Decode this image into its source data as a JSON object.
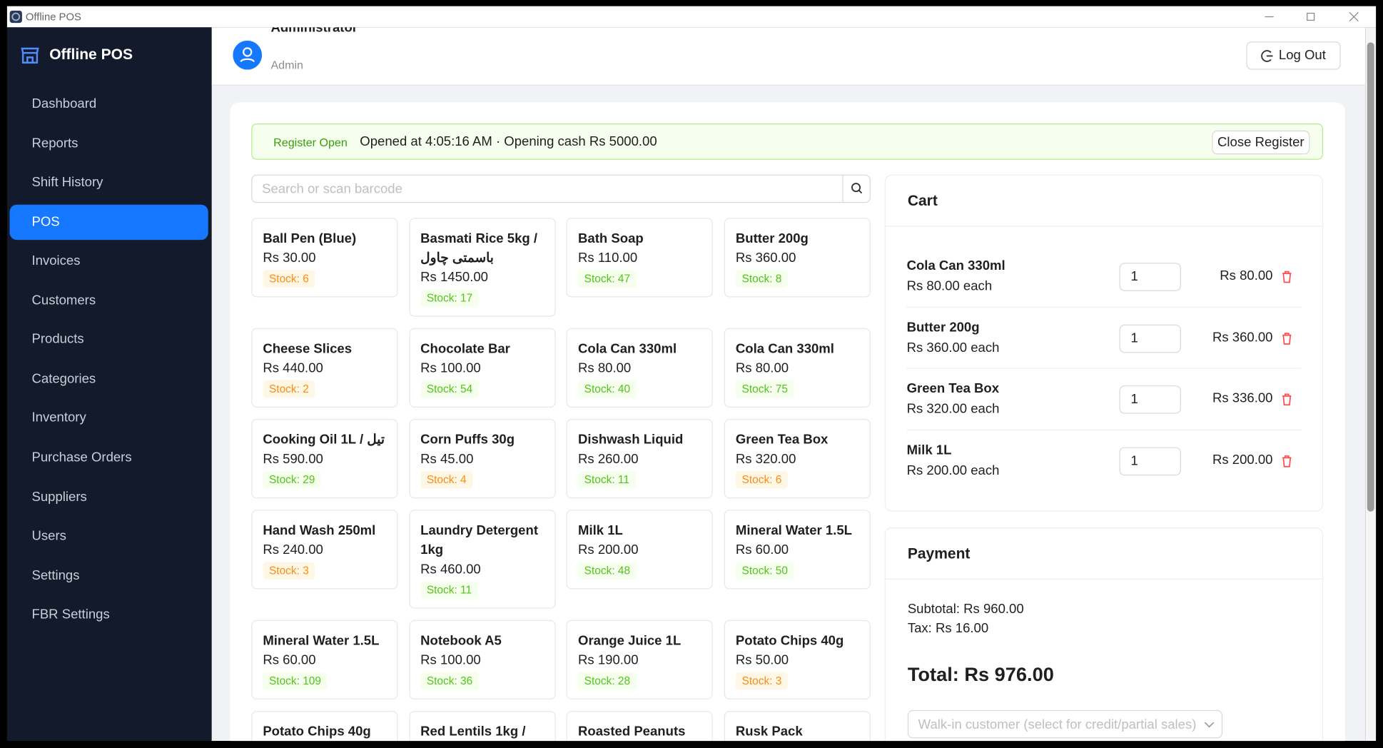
{
  "window": {
    "title": "Offline POS"
  },
  "sidebar": {
    "brand": "Offline POS",
    "nav": [
      {
        "label": "Dashboard"
      },
      {
        "label": "Reports"
      },
      {
        "label": "Shift History"
      },
      {
        "label": "POS",
        "active": true
      },
      {
        "label": "Invoices"
      },
      {
        "label": "Customers"
      },
      {
        "label": "Products"
      },
      {
        "label": "Categories"
      },
      {
        "label": "Inventory"
      },
      {
        "label": "Purchase Orders"
      },
      {
        "label": "Suppliers"
      },
      {
        "label": "Users"
      },
      {
        "label": "Settings"
      },
      {
        "label": "FBR Settings"
      }
    ]
  },
  "header": {
    "user_name": "Administrator",
    "user_role": "Admin",
    "logout": "Log Out"
  },
  "register": {
    "status": "Register Open",
    "info": "Opened at 4:05:16 AM · Opening cash Rs 5000.00",
    "close_button": "Close Register"
  },
  "search": {
    "placeholder": "Search or scan barcode"
  },
  "products": [
    {
      "name": "Ball Pen (Blue)",
      "price": "Rs 30.00",
      "stock": "Stock: 6"
    },
    {
      "name": "Basmati Rice 5kg / باسمتی چاول",
      "price": "Rs 1450.00",
      "stock": "Stock: 17"
    },
    {
      "name": "Bath Soap",
      "price": "Rs 110.00",
      "stock": "Stock: 47"
    },
    {
      "name": "Butter 200g",
      "price": "Rs 360.00",
      "stock": "Stock: 8"
    },
    {
      "name": "Cheese Slices",
      "price": "Rs 440.00",
      "stock": "Stock: 2"
    },
    {
      "name": "Chocolate Bar",
      "price": "Rs 100.00",
      "stock": "Stock: 54"
    },
    {
      "name": "Cola Can 330ml",
      "price": "Rs 80.00",
      "stock": "Stock: 40"
    },
    {
      "name": "Cola Can 330ml",
      "price": "Rs 80.00",
      "stock": "Stock: 75"
    },
    {
      "name": "Cooking Oil 1L / تیل",
      "price": "Rs 590.00",
      "stock": "Stock: 29"
    },
    {
      "name": "Corn Puffs 30g",
      "price": "Rs 45.00",
      "stock": "Stock: 4"
    },
    {
      "name": "Dishwash Liquid",
      "price": "Rs 260.00",
      "stock": "Stock: 11"
    },
    {
      "name": "Green Tea Box",
      "price": "Rs 320.00",
      "stock": "Stock: 6"
    },
    {
      "name": "Hand Wash 250ml",
      "price": "Rs 240.00",
      "stock": "Stock: 3"
    },
    {
      "name": "Laundry Detergent 1kg",
      "price": "Rs 460.00",
      "stock": "Stock: 11"
    },
    {
      "name": "Milk 1L",
      "price": "Rs 200.00",
      "stock": "Stock: 48"
    },
    {
      "name": "Mineral Water 1.5L",
      "price": "Rs 60.00",
      "stock": "Stock: 50"
    },
    {
      "name": "Mineral Water 1.5L",
      "price": "Rs 60.00",
      "stock": "Stock: 109"
    },
    {
      "name": "Notebook A5",
      "price": "Rs 100.00",
      "stock": "Stock: 36"
    },
    {
      "name": "Orange Juice 1L",
      "price": "Rs 190.00",
      "stock": "Stock: 28"
    },
    {
      "name": "Potato Chips 40g",
      "price": "Rs 50.00",
      "stock": "Stock: 3"
    },
    {
      "name": "Potato Chips 40g"
    },
    {
      "name": "Red Lentils 1kg /"
    },
    {
      "name": "Roasted Peanuts"
    },
    {
      "name": "Rusk Pack"
    }
  ],
  "cart": {
    "title": "Cart",
    "items": [
      {
        "name": "Cola Can 330ml",
        "unit_price": "Rs 80.00 each",
        "qty": 1,
        "total": "Rs 80.00"
      },
      {
        "name": "Butter 200g",
        "unit_price": "Rs 360.00 each",
        "qty": 1,
        "total": "Rs 360.00"
      },
      {
        "name": "Green Tea Box",
        "unit_price": "Rs 320.00 each",
        "qty": 1,
        "total": "Rs 336.00"
      },
      {
        "name": "Milk 1L",
        "unit_price": "Rs 200.00 each",
        "qty": 1,
        "total": "Rs 200.00"
      }
    ]
  },
  "payment": {
    "title": "Payment",
    "subtotal": "Subtotal: Rs 960.00",
    "tax": "Tax: Rs 16.00",
    "total": "Total: Rs 976.00",
    "customer_placeholder": "Walk-in customer (select for credit/partial sales)"
  }
}
